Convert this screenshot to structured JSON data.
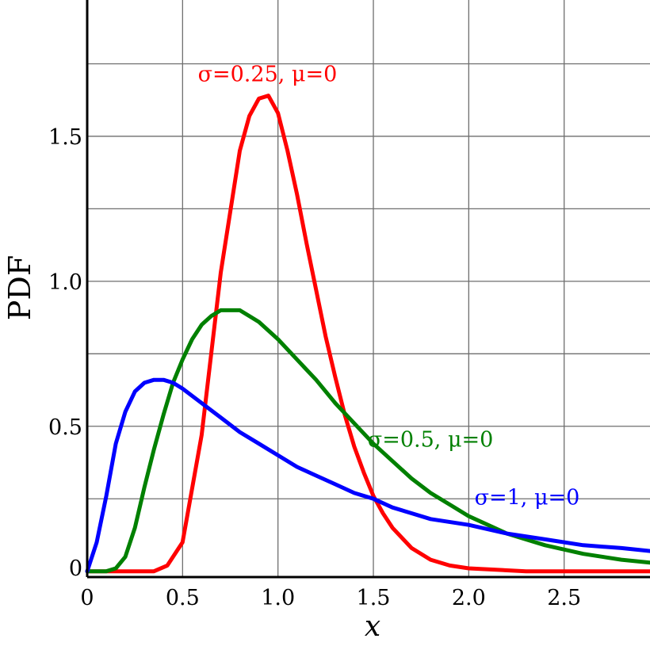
{
  "chart_data": {
    "type": "line",
    "title": "",
    "xlabel": "x",
    "ylabel": "PDF",
    "xlim": [
      0,
      2.95
    ],
    "ylim": [
      -0.02,
      1.97
    ],
    "grid": true,
    "x_ticks": [
      {
        "value": 0,
        "label": "0"
      },
      {
        "value": 0.5,
        "label": "0.5"
      },
      {
        "value": 1.0,
        "label": "1.0"
      },
      {
        "value": 1.5,
        "label": "1.5"
      },
      {
        "value": 2.0,
        "label": "2.0"
      },
      {
        "value": 2.5,
        "label": "2.5"
      }
    ],
    "y_ticks": [
      {
        "value": 0,
        "label": "0"
      },
      {
        "value": 0.5,
        "label": "0.5"
      },
      {
        "value": 1.0,
        "label": "1.0"
      },
      {
        "value": 1.5,
        "label": "1.5"
      }
    ],
    "x_grid": [
      0.5,
      1.0,
      1.5,
      2.0,
      2.5
    ],
    "y_grid": [
      0.25,
      0.5,
      0.75,
      1.0,
      1.25,
      1.5,
      1.75
    ],
    "series": [
      {
        "name": "σ=0.25,  μ=0",
        "color": "#ff0000",
        "label_at": [
          0.58,
          1.69
        ],
        "points": [
          [
            0,
            0
          ],
          [
            0.35,
            0
          ],
          [
            0.42,
            0.02
          ],
          [
            0.5,
            0.1
          ],
          [
            0.6,
            0.47
          ],
          [
            0.7,
            1.03
          ],
          [
            0.8,
            1.45
          ],
          [
            0.85,
            1.57
          ],
          [
            0.9,
            1.63
          ],
          [
            0.95,
            1.64
          ],
          [
            1.0,
            1.58
          ],
          [
            1.05,
            1.45
          ],
          [
            1.1,
            1.3
          ],
          [
            1.15,
            1.13
          ],
          [
            1.2,
            0.97
          ],
          [
            1.25,
            0.81
          ],
          [
            1.3,
            0.67
          ],
          [
            1.35,
            0.54
          ],
          [
            1.4,
            0.43
          ],
          [
            1.45,
            0.34
          ],
          [
            1.5,
            0.26
          ],
          [
            1.55,
            0.2
          ],
          [
            1.6,
            0.15
          ],
          [
            1.7,
            0.08
          ],
          [
            1.8,
            0.04
          ],
          [
            1.9,
            0.02
          ],
          [
            2.0,
            0.01
          ],
          [
            2.3,
            0.0
          ],
          [
            2.95,
            0
          ]
        ]
      },
      {
        "name": "σ=0.5,  μ=0",
        "color": "#008000",
        "label_at": [
          1.47,
          0.43
        ],
        "points": [
          [
            0,
            0
          ],
          [
            0.1,
            0.0
          ],
          [
            0.15,
            0.01
          ],
          [
            0.2,
            0.05
          ],
          [
            0.25,
            0.15
          ],
          [
            0.3,
            0.29
          ],
          [
            0.35,
            0.42
          ],
          [
            0.4,
            0.54
          ],
          [
            0.45,
            0.65
          ],
          [
            0.5,
            0.73
          ],
          [
            0.55,
            0.8
          ],
          [
            0.6,
            0.85
          ],
          [
            0.65,
            0.88
          ],
          [
            0.7,
            0.9
          ],
          [
            0.75,
            0.9
          ],
          [
            0.8,
            0.9
          ],
          [
            0.85,
            0.88
          ],
          [
            0.9,
            0.86
          ],
          [
            1.0,
            0.8
          ],
          [
            1.1,
            0.73
          ],
          [
            1.2,
            0.66
          ],
          [
            1.3,
            0.58
          ],
          [
            1.4,
            0.51
          ],
          [
            1.5,
            0.44
          ],
          [
            1.6,
            0.38
          ],
          [
            1.7,
            0.32
          ],
          [
            1.8,
            0.27
          ],
          [
            1.9,
            0.23
          ],
          [
            2.0,
            0.19
          ],
          [
            2.2,
            0.13
          ],
          [
            2.4,
            0.09
          ],
          [
            2.6,
            0.06
          ],
          [
            2.8,
            0.04
          ],
          [
            2.95,
            0.03
          ]
        ]
      },
      {
        "name": "σ=1,  μ=0",
        "color": "#0000ff",
        "label_at": [
          2.03,
          0.23
        ],
        "points": [
          [
            0,
            0
          ],
          [
            0.05,
            0.1
          ],
          [
            0.1,
            0.26
          ],
          [
            0.15,
            0.44
          ],
          [
            0.2,
            0.55
          ],
          [
            0.25,
            0.62
          ],
          [
            0.3,
            0.65
          ],
          [
            0.35,
            0.66
          ],
          [
            0.4,
            0.66
          ],
          [
            0.45,
            0.65
          ],
          [
            0.5,
            0.63
          ],
          [
            0.6,
            0.58
          ],
          [
            0.7,
            0.53
          ],
          [
            0.8,
            0.48
          ],
          [
            0.9,
            0.44
          ],
          [
            1.0,
            0.4
          ],
          [
            1.1,
            0.36
          ],
          [
            1.2,
            0.33
          ],
          [
            1.3,
            0.3
          ],
          [
            1.4,
            0.27
          ],
          [
            1.5,
            0.25
          ],
          [
            1.6,
            0.22
          ],
          [
            1.7,
            0.2
          ],
          [
            1.8,
            0.18
          ],
          [
            2.0,
            0.16
          ],
          [
            2.2,
            0.13
          ],
          [
            2.4,
            0.11
          ],
          [
            2.6,
            0.09
          ],
          [
            2.8,
            0.08
          ],
          [
            2.95,
            0.07
          ]
        ]
      }
    ]
  }
}
